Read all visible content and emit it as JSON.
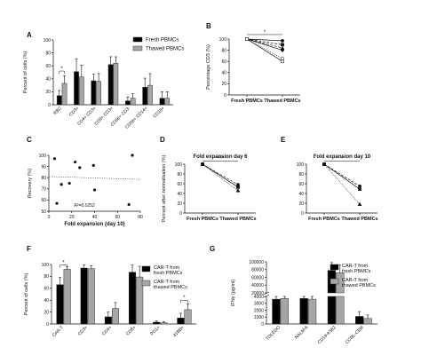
{
  "panels": {
    "A": {
      "label": "A"
    },
    "B": {
      "label": "B"
    },
    "C": {
      "label": "C"
    },
    "D": {
      "label": "D"
    },
    "E": {
      "label": "E"
    },
    "F": {
      "label": "F"
    },
    "G": {
      "label": "G"
    }
  },
  "colors": {
    "dark": "#000000",
    "light": "#a6a6a6",
    "border": "#333333"
  },
  "chart_data": [
    {
      "id": "A",
      "type": "bar",
      "ylabel": "Percent of cells (%)",
      "ylim": [
        0,
        100
      ],
      "yticks": [
        0,
        20,
        40,
        60,
        80,
        100
      ],
      "categories": [
        "RBC",
        "CD3+",
        "CD4+ CD3+",
        "CD8+ CD3+",
        "CD56+ CD3-",
        "CD56+ CD14+",
        "CD19+"
      ],
      "series": [
        {
          "name": "Fresh PBMCs",
          "color": "#000000",
          "values": [
            14,
            51,
            37,
            62,
            6,
            27,
            10
          ],
          "err": [
            8,
            20,
            10,
            12,
            6,
            14,
            10
          ]
        },
        {
          "name": "Thawed PBMCs",
          "color": "#a6a6a6",
          "values": [
            33,
            43,
            36,
            64,
            10,
            30,
            10
          ],
          "err": [
            12,
            18,
            12,
            10,
            7,
            18,
            10
          ]
        }
      ],
      "annotations": [
        {
          "text": "*",
          "between": [
            0,
            0
          ]
        }
      ]
    },
    {
      "id": "B",
      "type": "line",
      "ylabel": "Percentage CD3 (%)",
      "ylim": [
        0,
        100
      ],
      "yticks": [
        0,
        20,
        40,
        60,
        80,
        100
      ],
      "categories": [
        "Fresh PBMCs",
        "Thawed PBMCs"
      ],
      "lines": [
        {
          "values": [
            100,
            97
          ],
          "style": "solid",
          "marker": "circle"
        },
        {
          "values": [
            100,
            90
          ],
          "style": "dashed",
          "marker": "square"
        },
        {
          "values": [
            100,
            84
          ],
          "style": "dashed",
          "marker": "triangle"
        },
        {
          "values": [
            100,
            80
          ],
          "style": "solid",
          "marker": "diamond"
        },
        {
          "values": [
            100,
            65
          ],
          "style": "dotted",
          "marker": "circle-open"
        },
        {
          "values": [
            100,
            60
          ],
          "style": "solid",
          "marker": "square-open"
        }
      ],
      "annotations": [
        {
          "text": "*"
        }
      ]
    },
    {
      "id": "C",
      "type": "scatter",
      "ylabel": "Recovery (%)",
      "xlabel": "Fold expansion (day 10)",
      "xlim": [
        0,
        80
      ],
      "ylim": [
        50,
        100
      ],
      "xticks": [
        0,
        20,
        40,
        60,
        80
      ],
      "yticks": [
        50,
        60,
        70,
        80,
        90,
        100
      ],
      "points": [
        [
          5,
          97
        ],
        [
          7,
          57
        ],
        [
          11,
          74
        ],
        [
          18,
          75
        ],
        [
          23,
          94
        ],
        [
          27,
          89
        ],
        [
          39,
          91
        ],
        [
          40,
          69
        ],
        [
          70,
          56
        ],
        [
          73,
          100
        ]
      ],
      "trend": [
        [
          0,
          81
        ],
        [
          80,
          78.5
        ]
      ],
      "r2_text": "R²=0.0252"
    },
    {
      "id": "D",
      "type": "line",
      "title": "Fold expansion day 6",
      "ylabel": "Percent after normalisation (%)",
      "ylim": [
        0,
        100
      ],
      "yticks": [
        0,
        20,
        40,
        60,
        80,
        100
      ],
      "categories": [
        "Fresh PBMCs",
        "Thawed PBMCs"
      ],
      "lines": [
        {
          "values": [
            100,
            58
          ],
          "style": "dashed",
          "marker": "circle"
        },
        {
          "values": [
            100,
            53
          ],
          "style": "solid",
          "marker": "square"
        },
        {
          "values": [
            100,
            46
          ],
          "style": "dotted",
          "marker": "triangle"
        }
      ],
      "annotations": [
        {
          "text": "***"
        }
      ]
    },
    {
      "id": "E",
      "type": "line",
      "title": "Fold expansion day 10",
      "ylim": [
        0,
        100
      ],
      "yticks": [
        0,
        20,
        40,
        60,
        80,
        100
      ],
      "categories": [
        "Fresh PBMCs",
        "Thawed PBMCs"
      ],
      "lines": [
        {
          "values": [
            100,
            55
          ],
          "style": "dashed",
          "marker": "circle"
        },
        {
          "values": [
            100,
            49
          ],
          "style": "solid",
          "marker": "square"
        },
        {
          "values": [
            100,
            18
          ],
          "style": "dotted",
          "marker": "triangle"
        }
      ],
      "annotations": [
        {
          "text": "*"
        }
      ]
    },
    {
      "id": "F",
      "type": "bar",
      "ylabel": "Percent of cells (%)",
      "ylim": [
        0,
        100
      ],
      "yticks": [
        0,
        20,
        40,
        60,
        80,
        100
      ],
      "categories": [
        "CAR-T",
        "CD3+",
        "CD4+",
        "CD8+",
        "PD1+",
        "41BB+"
      ],
      "series": [
        {
          "name": "CAR-T from fresh PBMCs",
          "color": "#000000",
          "values": [
            66,
            94,
            12,
            87,
            3,
            10
          ],
          "err": [
            12,
            5,
            8,
            12,
            2,
            8
          ]
        },
        {
          "name": "CAR-T from thawed PBMCs",
          "color": "#a6a6a6",
          "values": [
            92,
            93,
            26,
            79,
            2,
            24
          ],
          "err": [
            4,
            5,
            10,
            18,
            2,
            10
          ]
        }
      ],
      "annotations": [
        {
          "text": "*",
          "cat": 0
        },
        {
          "text": "*",
          "cat": 5
        }
      ]
    },
    {
      "id": "G",
      "type": "bar",
      "ylabel": "IFNγ (pg/ml)",
      "broken_axis": true,
      "upper_ylim": [
        20000,
        100000
      ],
      "upper_ticks": [
        20000,
        40000,
        60000,
        80000,
        100000
      ],
      "lower_ylim": [
        0,
        4000
      ],
      "lower_ticks": [
        0,
        1000,
        2000,
        3000,
        4000
      ],
      "categories": [
        "TOLEDO",
        "NALM-6",
        "CD19-K562",
        "CCRL-CEM"
      ],
      "series": [
        {
          "name": "CAR-T from fresh PBMCs",
          "color": "#000000",
          "values": [
            3600,
            3700,
            78000,
            1100
          ],
          "err": [
            400,
            300,
            20000,
            700
          ]
        },
        {
          "name": "CAR-T from thawed PBMCs",
          "color": "#a6a6a6",
          "values": [
            3700,
            3600,
            72000,
            800
          ],
          "err": [
            400,
            400,
            20000,
            500
          ]
        }
      ]
    }
  ]
}
